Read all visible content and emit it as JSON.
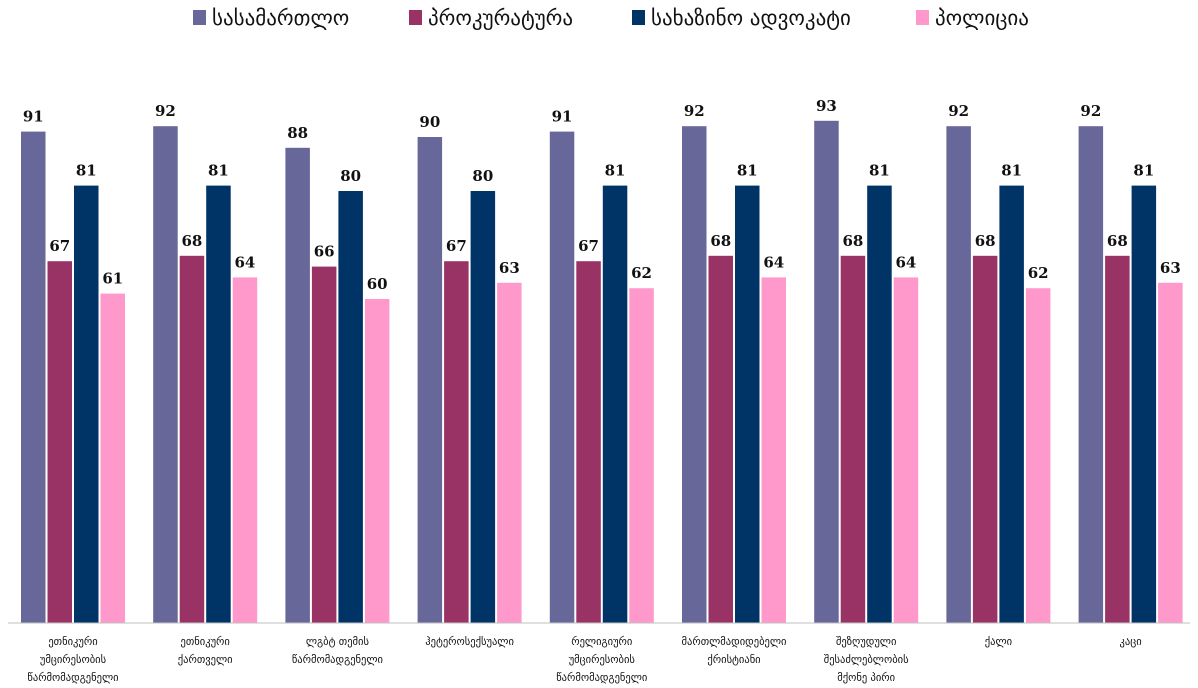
{
  "chart_data": {
    "type": "bar",
    "title": "",
    "xlabel": "",
    "ylabel": "",
    "ylim": [
      0,
      100
    ],
    "grid": false,
    "legend_position": "top",
    "categories": [
      [
        "ეთნიკური",
        "უმცირესობის",
        "წარმომადგენელი"
      ],
      [
        "ეთნიკური",
        "ქართველი"
      ],
      [
        "ლგბტ თემის",
        "წარმომადგენელი"
      ],
      [
        "ჰეტეროსექსუალი"
      ],
      [
        "რელიგიური",
        "უმცირესობის",
        "წარმომადგენელი"
      ],
      [
        "მართლმადიდებელი",
        "ქრისტიანი"
      ],
      [
        "შეზღუდული",
        "შესაძლებლობის",
        "მქონე პირი"
      ],
      [
        "ქალი"
      ],
      [
        "კაცი"
      ]
    ],
    "series": [
      {
        "name": "სასამართლო",
        "color": "#67679a",
        "values": [
          91,
          92,
          88,
          90,
          91,
          92,
          93,
          92,
          92
        ]
      },
      {
        "name": "პროკურატურა",
        "color": "#993366",
        "values": [
          67,
          68,
          66,
          67,
          67,
          68,
          68,
          68,
          68
        ]
      },
      {
        "name": "სახაზინო ადვოკატი",
        "color": "#003366",
        "values": [
          81,
          81,
          80,
          80,
          81,
          81,
          81,
          81,
          81
        ]
      },
      {
        "name": "პოლიცია",
        "color": "#ff99cc",
        "values": [
          61,
          64,
          60,
          63,
          62,
          64,
          64,
          62,
          63
        ]
      }
    ]
  }
}
